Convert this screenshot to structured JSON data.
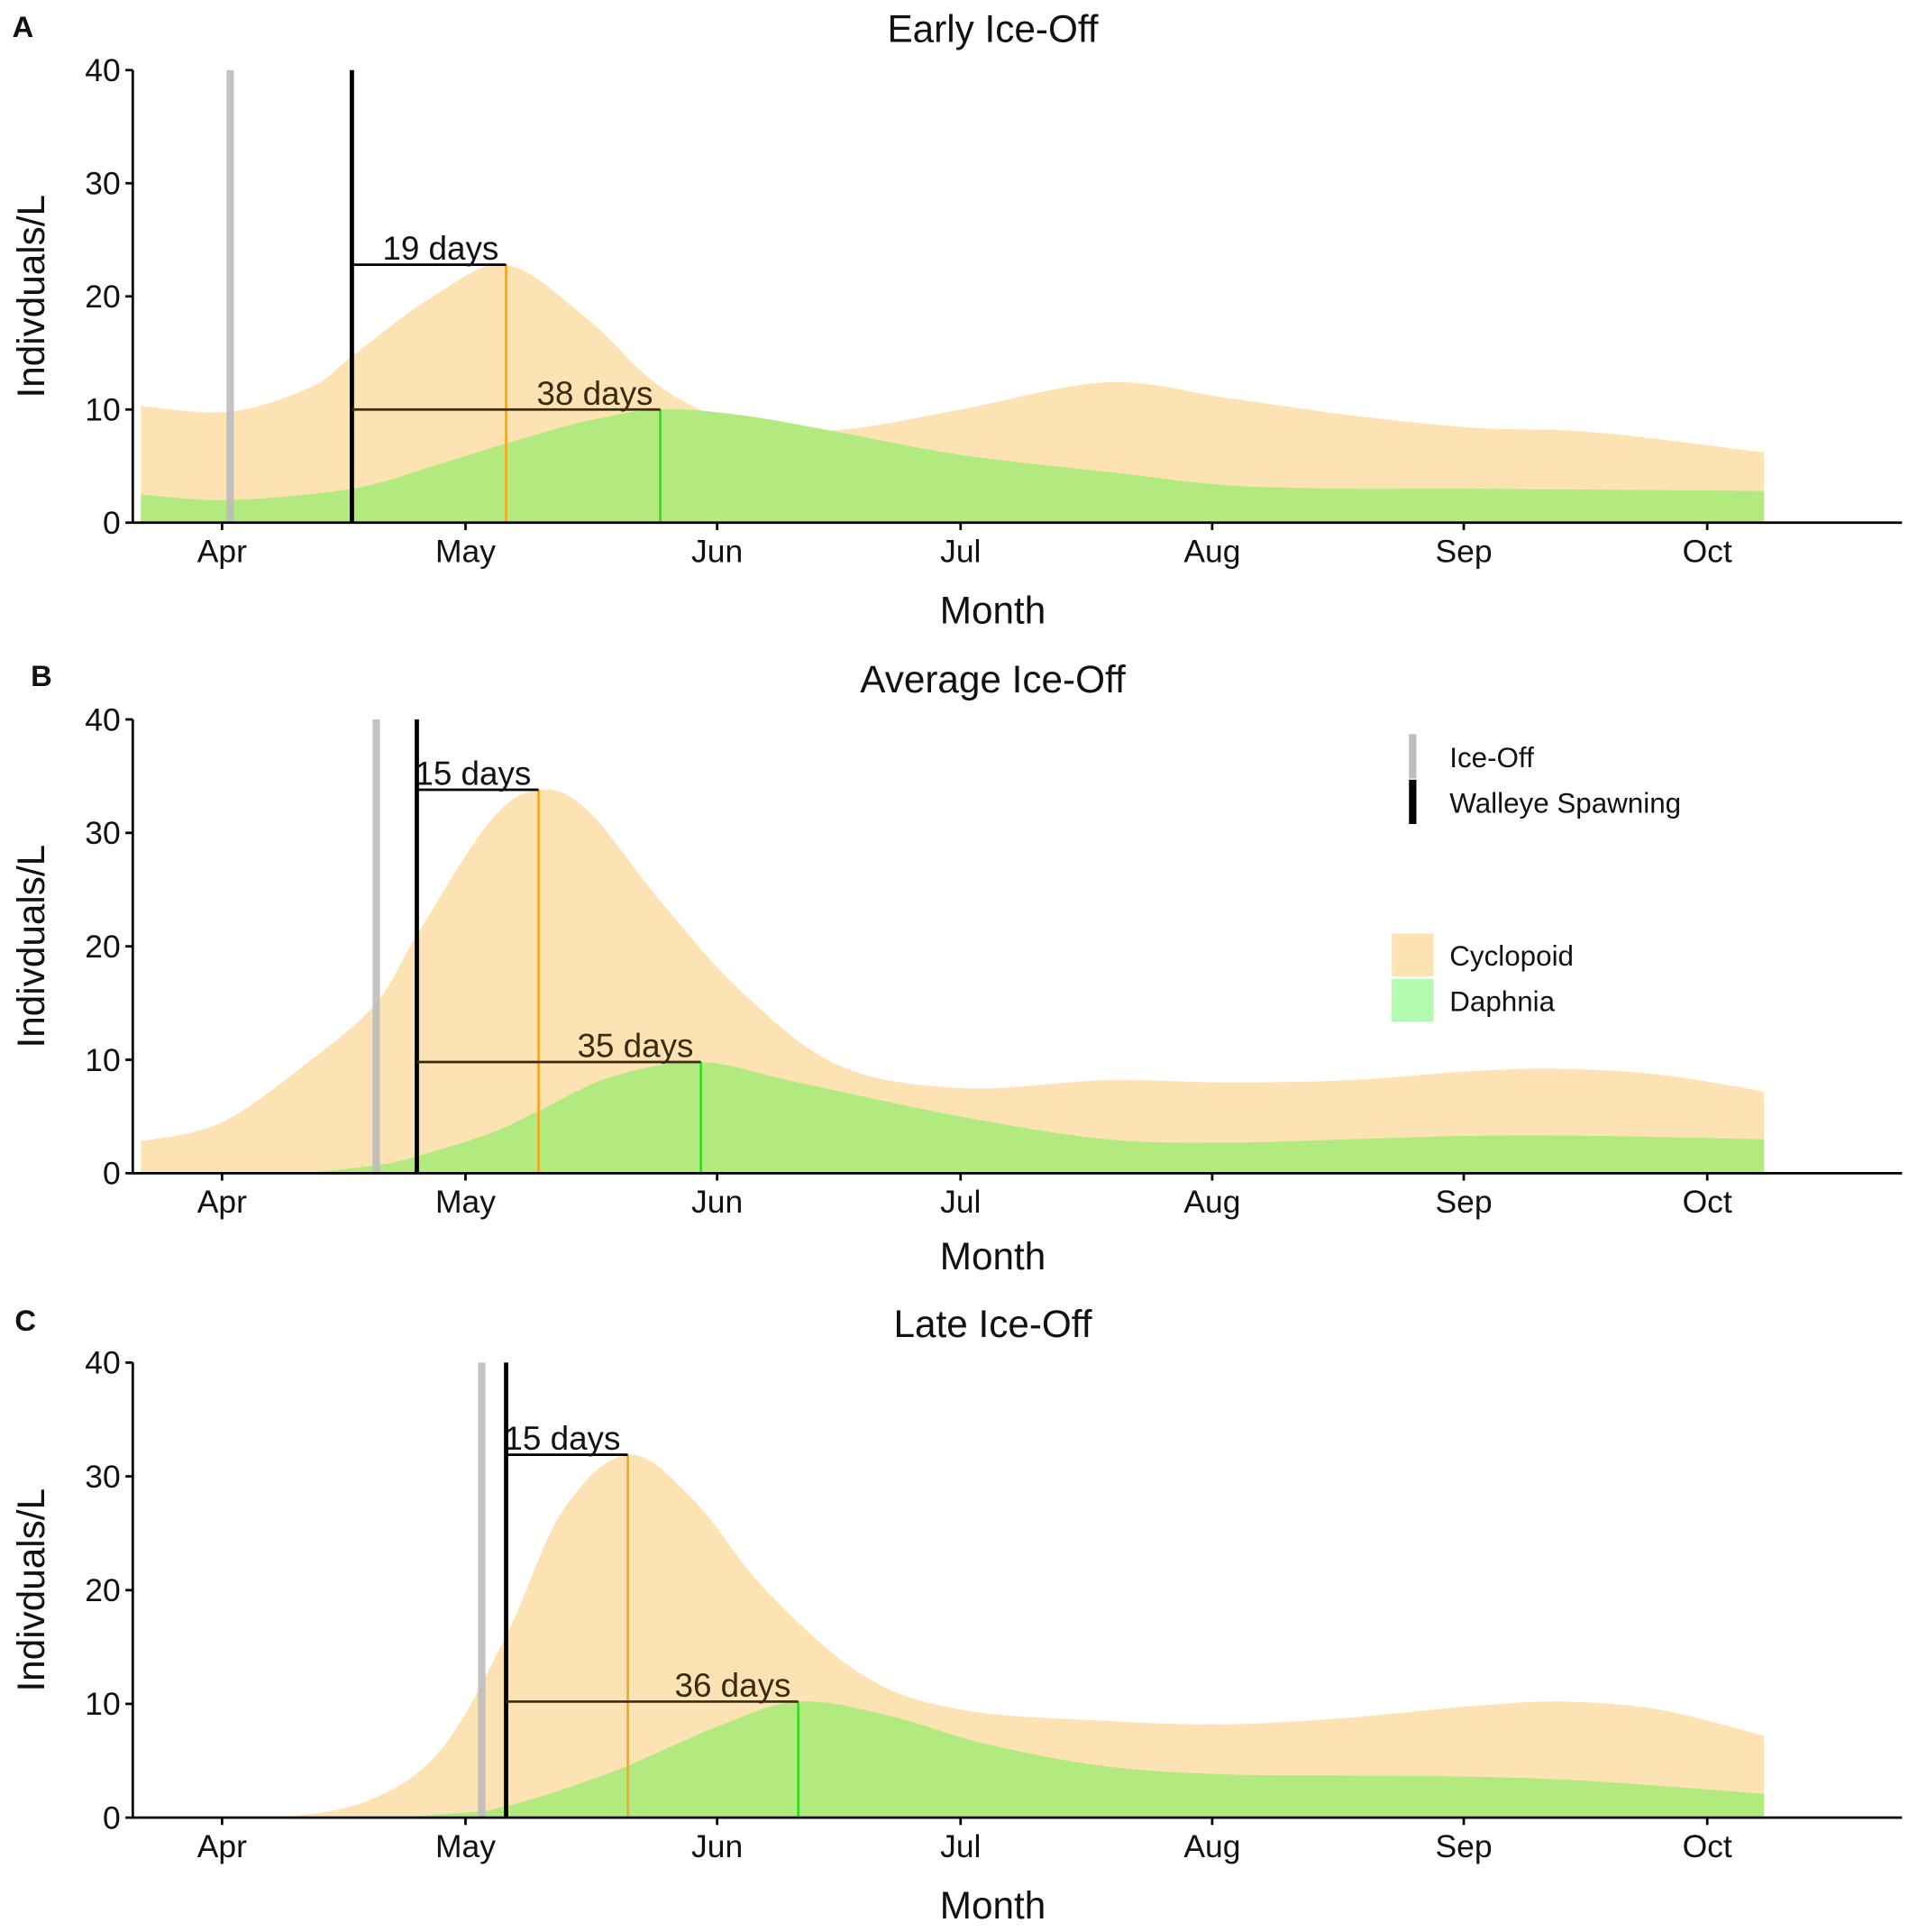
{
  "colors": {
    "cyclopoid": "#FDE3B4",
    "daphnia": "#B3EA80",
    "daphnia_legend": "#B3FBB0",
    "ice_off": "#BDBDBD",
    "walleye_spawning": "#000000",
    "cyclopoid_peak": "#F5A623",
    "daphnia_peak": "#33DD22"
  },
  "legend": {
    "lines": [
      {
        "label": "Ice-Off",
        "color": "#BDBDBD"
      },
      {
        "label": "Walleye Spawning",
        "color": "#000000"
      }
    ],
    "fills": [
      {
        "label": "Cyclopoid",
        "color": "#FDE3B4"
      },
      {
        "label": "Daphnia",
        "color": "#B3FBB0"
      }
    ],
    "placement": "right (panel B)"
  },
  "chart_data": [
    {
      "type": "area",
      "panel": "A",
      "title": "Early Ice-Off",
      "xlabel": "Month",
      "ylabel": "Indivduals/L",
      "x_unit": "day of year",
      "xlim": [
        80,
        298
      ],
      "ylim": [
        0,
        40
      ],
      "yticks": [
        0,
        10,
        20,
        30,
        40
      ],
      "xticks": [
        {
          "day": 91,
          "label": "Apr"
        },
        {
          "day": 121,
          "label": "May"
        },
        {
          "day": 152,
          "label": "Jun"
        },
        {
          "day": 182,
          "label": "Jul"
        },
        {
          "day": 213,
          "label": "Aug"
        },
        {
          "day": 244,
          "label": "Sep"
        },
        {
          "day": 274,
          "label": "Oct"
        }
      ],
      "grid": false,
      "ice_off_day": 92,
      "spawning_day": 107,
      "series": [
        {
          "name": "Cyclopoid",
          "x": [
            81,
            92,
            102,
            107,
            117,
            126,
            136,
            145,
            155,
            167,
            182,
            200,
            215,
            230,
            245,
            260,
            281
          ],
          "y": [
            10.3,
            9.8,
            12,
            14.7,
            20,
            22.8,
            18,
            12,
            8.7,
            8.2,
            10,
            12.4,
            11,
            9.5,
            8.4,
            8,
            6.2
          ]
        },
        {
          "name": "Daphnia",
          "x": [
            81,
            92,
            107,
            117,
            126,
            136,
            145,
            155,
            167,
            182,
            200,
            215,
            230,
            245,
            281
          ],
          "y": [
            2.5,
            2,
            3,
            5,
            7,
            9,
            10,
            9.5,
            8,
            6,
            4.5,
            3.3,
            3,
            3,
            2.8
          ]
        }
      ],
      "annotations": [
        {
          "label": "19 days",
          "from_day": 107,
          "to_day": 126,
          "y": 22.8,
          "series": "Cyclopoid"
        },
        {
          "label": "38 days",
          "from_day": 107,
          "to_day": 145,
          "y": 10,
          "series": "Daphnia"
        }
      ]
    },
    {
      "type": "area",
      "panel": "B",
      "title": "Average Ice-Off",
      "xlabel": "Month",
      "ylabel": "Indivduals/L",
      "x_unit": "day of year",
      "xlim": [
        80,
        298
      ],
      "ylim": [
        0,
        40
      ],
      "yticks": [
        0,
        10,
        20,
        30,
        40
      ],
      "xticks": [
        {
          "day": 91,
          "label": "Apr"
        },
        {
          "day": 121,
          "label": "May"
        },
        {
          "day": 152,
          "label": "Jun"
        },
        {
          "day": 182,
          "label": "Jul"
        },
        {
          "day": 213,
          "label": "Aug"
        },
        {
          "day": 244,
          "label": "Sep"
        },
        {
          "day": 274,
          "label": "Oct"
        }
      ],
      "grid": false,
      "ice_off_day": 110,
      "spawning_day": 115,
      "series": [
        {
          "name": "Cyclopoid",
          "x": [
            81,
            91,
            102,
            110,
            115,
            124,
            130,
            136,
            145,
            155,
            167,
            182,
            200,
            215,
            230,
            245,
            256,
            268,
            281
          ],
          "y": [
            2.8,
            4.5,
            10,
            15,
            21,
            31,
            33.8,
            32,
            24,
            16,
            9.5,
            7.5,
            8.2,
            8,
            8.2,
            9,
            9.2,
            8.7,
            7.2
          ]
        },
        {
          "name": "Daphnia",
          "x": [
            81,
            99,
            110,
            115,
            124,
            130,
            139,
            150,
            162,
            182,
            200,
            215,
            230,
            245,
            260,
            281
          ],
          "y": [
            0,
            0,
            0.7,
            1.5,
            3.5,
            5.5,
            8.5,
            9.8,
            8,
            5,
            3,
            2.7,
            3,
            3.3,
            3.3,
            3
          ]
        }
      ],
      "annotations": [
        {
          "label": "15 days",
          "from_day": 115,
          "to_day": 130,
          "y": 33.8,
          "series": "Cyclopoid"
        },
        {
          "label": "35 days",
          "from_day": 115,
          "to_day": 150,
          "y": 9.8,
          "series": "Daphnia"
        }
      ]
    },
    {
      "type": "area",
      "panel": "C",
      "title": "Late Ice-Off",
      "xlabel": "Month",
      "ylabel": "Indivduals/L",
      "x_unit": "day of year",
      "xlim": [
        80,
        298
      ],
      "ylim": [
        0,
        40
      ],
      "yticks": [
        0,
        10,
        20,
        30,
        40
      ],
      "xticks": [
        {
          "day": 91,
          "label": "Apr"
        },
        {
          "day": 121,
          "label": "May"
        },
        {
          "day": 152,
          "label": "Jun"
        },
        {
          "day": 182,
          "label": "Jul"
        },
        {
          "day": 213,
          "label": "Aug"
        },
        {
          "day": 244,
          "label": "Sep"
        },
        {
          "day": 274,
          "label": "Oct"
        }
      ],
      "grid": false,
      "ice_off_day": 123,
      "spawning_day": 126,
      "series": [
        {
          "name": "Cyclopoid",
          "x": [
            81,
            97,
            109,
            118,
            126,
            133,
            141,
            149,
            158,
            170,
            182,
            200,
            215,
            230,
            245,
            256,
            268,
            281
          ],
          "y": [
            0,
            0,
            1.5,
            6,
            16,
            27,
            31.9,
            28,
            20,
            12.5,
            9.5,
            8.5,
            8.2,
            8.8,
            9.8,
            10.2,
            9.5,
            7.2
          ]
        },
        {
          "name": "Daphnia",
          "x": [
            81,
            109,
            118,
            126,
            139,
            152,
            162,
            173,
            185,
            200,
            215,
            230,
            245,
            260,
            281
          ],
          "y": [
            0,
            0,
            0.3,
            1,
            4,
            8,
            10.2,
            9,
            6.5,
            4.5,
            3.8,
            3.7,
            3.6,
            3.2,
            2.1
          ]
        }
      ],
      "annotations": [
        {
          "label": "15 days",
          "from_day": 126,
          "to_day": 141,
          "y": 31.9,
          "series": "Cyclopoid"
        },
        {
          "label": "36 days",
          "from_day": 126,
          "to_day": 162,
          "y": 10.2,
          "series": "Daphnia"
        }
      ]
    }
  ]
}
